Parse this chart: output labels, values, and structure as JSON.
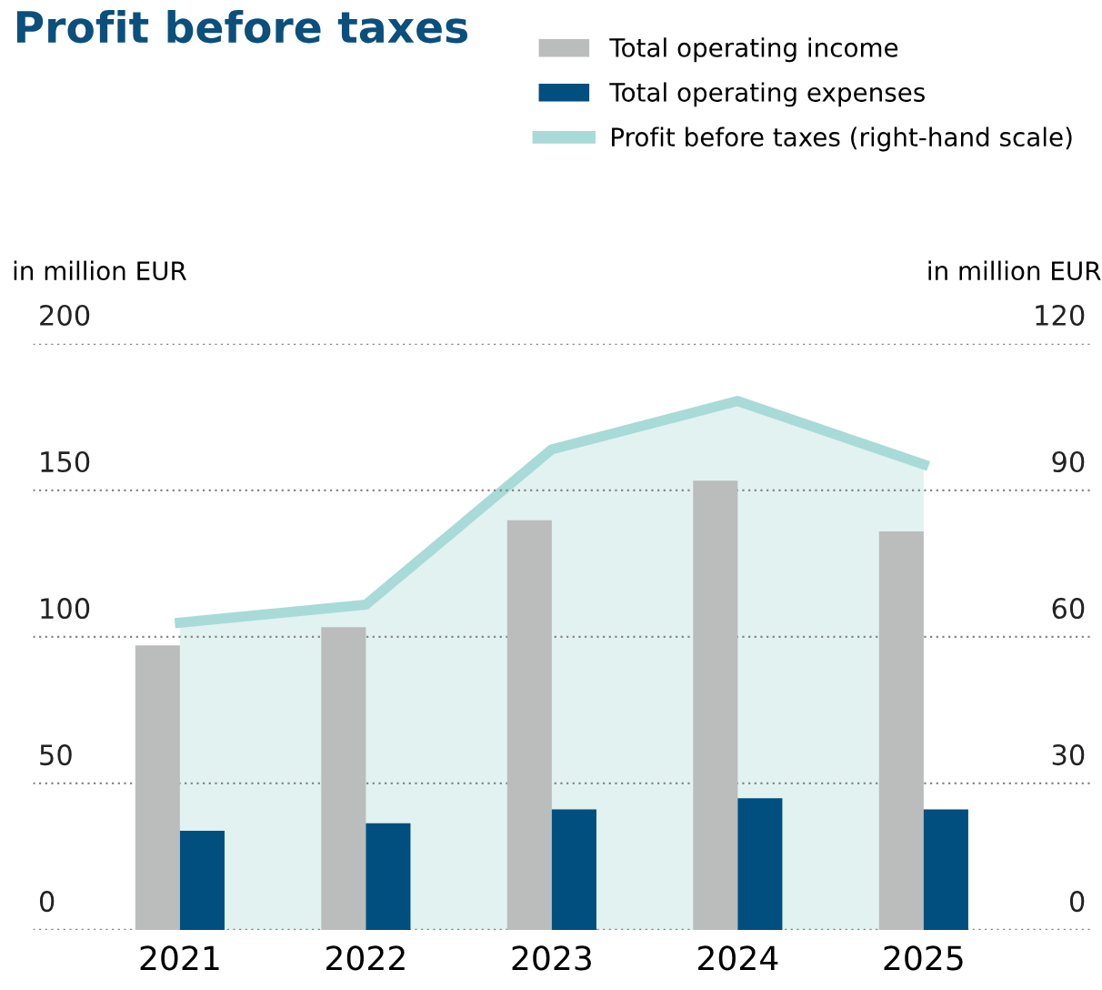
{
  "chart_data": {
    "type": "bar",
    "title": "Profit before taxes",
    "ylabel": "in million EUR",
    "y2label": "in million EUR",
    "categories": [
      "2021",
      "2022",
      "2023",
      "2024",
      "2025"
    ],
    "series": [
      {
        "name": "Total operating income",
        "color": "#bbbcbc",
        "values": [
          97.1,
          103.3,
          139.8,
          153.3,
          136
        ]
      },
      {
        "name": "Total operating expenses",
        "color": "#004f7f",
        "values": [
          33.8,
          36.4,
          41.1,
          44.9,
          41.1
        ]
      },
      {
        "name": "Profit before taxes (right-hand scale)",
        "type": "area",
        "axis": "y2",
        "color": "#a8dad8",
        "values": [
          62.9,
          66.6,
          98.4,
          108.3,
          95.3
        ]
      }
    ],
    "ylim": [
      0,
      200
    ],
    "yticks": [
      0,
      50,
      100,
      150,
      200
    ],
    "y2lim": [
      0,
      120
    ],
    "y2ticks": [
      0,
      30,
      60,
      90,
      120
    ],
    "grid": "y",
    "legend": "top right"
  }
}
